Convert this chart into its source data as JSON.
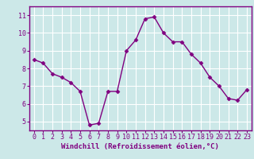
{
  "x": [
    0,
    1,
    2,
    3,
    4,
    5,
    6,
    7,
    8,
    9,
    10,
    11,
    12,
    13,
    14,
    15,
    16,
    17,
    18,
    19,
    20,
    21,
    22,
    23
  ],
  "y": [
    8.5,
    8.3,
    7.7,
    7.5,
    7.2,
    6.7,
    4.8,
    4.9,
    6.7,
    6.7,
    9.0,
    9.6,
    10.8,
    10.9,
    10.0,
    9.5,
    9.5,
    8.8,
    8.3,
    7.5,
    7.0,
    6.3,
    6.2,
    6.8
  ],
  "line_color": "#800080",
  "marker": "D",
  "marker_size": 2.5,
  "linewidth": 1.0,
  "xlabel": "Windchill (Refroidissement éolien,°C)",
  "xlabel_fontsize": 6.5,
  "xlim": [
    -0.5,
    23.5
  ],
  "ylim": [
    4.5,
    11.5
  ],
  "yticks": [
    5,
    6,
    7,
    8,
    9,
    10,
    11
  ],
  "xticks": [
    0,
    1,
    2,
    3,
    4,
    5,
    6,
    7,
    8,
    9,
    10,
    11,
    12,
    13,
    14,
    15,
    16,
    17,
    18,
    19,
    20,
    21,
    22,
    23
  ],
  "background_color": "#cce8e8",
  "grid_color": "#ffffff",
  "tick_fontsize": 6.0,
  "axis_label_color": "#800080",
  "tick_color": "#800080",
  "spine_color": "#800080"
}
